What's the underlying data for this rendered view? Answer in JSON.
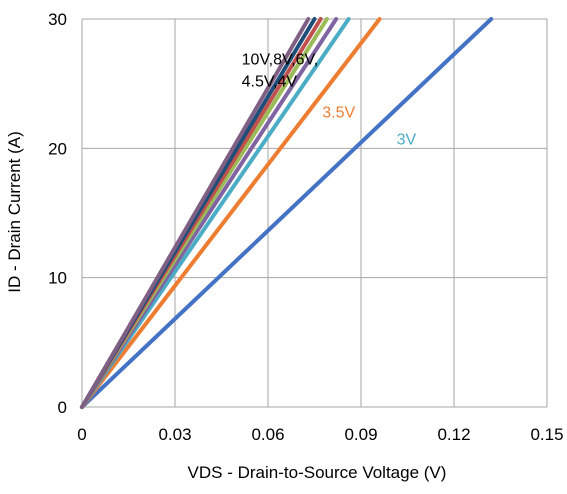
{
  "chart_data": {
    "type": "line",
    "title": "",
    "xlabel": "VDS - Drain-to-Source Voltage (V)",
    "ylabel": "ID - Drain Current (A)",
    "xlim": [
      0,
      0.15
    ],
    "ylim": [
      0,
      30
    ],
    "xticks": [
      "0",
      "0.03",
      "0.06",
      "0.09",
      "0.12",
      "0.15"
    ],
    "yticks": [
      "0",
      "10",
      "20",
      "30"
    ],
    "grid": true,
    "series": [
      {
        "color": "#4472C4",
        "x": [
          0,
          0.033,
          0.066,
          0.099,
          0.132
        ],
        "y": [
          0,
          7.5,
          15,
          22.5,
          30
        ]
      },
      {
        "color": "#ED7D31",
        "x": [
          0,
          0.024,
          0.048,
          0.072,
          0.096
        ],
        "y": [
          0,
          7.5,
          15,
          22.5,
          30
        ]
      },
      {
        "color": "#4BACC6",
        "x": [
          0,
          0.0215,
          0.043,
          0.0645,
          0.086
        ],
        "y": [
          0,
          7.5,
          15,
          22.5,
          30
        ]
      },
      {
        "color": "#8064A2",
        "x": [
          0,
          0.0205,
          0.041,
          0.0615,
          0.082
        ],
        "y": [
          0,
          7.5,
          15,
          22.5,
          30
        ]
      },
      {
        "color": "#9BBB59",
        "x": [
          0,
          0.01975,
          0.0395,
          0.05925,
          0.079
        ],
        "y": [
          0,
          7.5,
          15,
          22.5,
          30
        ]
      },
      {
        "color": "#C0504D",
        "x": [
          0,
          0.0192,
          0.0385,
          0.0577,
          0.077
        ],
        "y": [
          0,
          7.5,
          15,
          22.5,
          30
        ]
      },
      {
        "color": "#1F4E79",
        "x": [
          0,
          0.01875,
          0.0375,
          0.05625,
          0.075
        ],
        "y": [
          0,
          7.5,
          15,
          22.5,
          30
        ]
      },
      {
        "color": "#7F6084",
        "x": [
          0,
          0.01825,
          0.0365,
          0.05475,
          0.073
        ],
        "y": [
          0,
          7.5,
          15,
          22.5,
          30
        ]
      }
    ],
    "annotations": [
      {
        "lines": [
          "10V,8V,6V,",
          "4.5V,4V"
        ],
        "x": 0.0515,
        "y": 26.5,
        "color": "#000000"
      },
      {
        "lines": [
          "3.5V"
        ],
        "x": 0.0775,
        "y": 22.4,
        "color": "#ED7D31"
      },
      {
        "lines": [
          "3V"
        ],
        "x": 0.1015,
        "y": 20.3,
        "color": "#4BACC6"
      }
    ]
  }
}
